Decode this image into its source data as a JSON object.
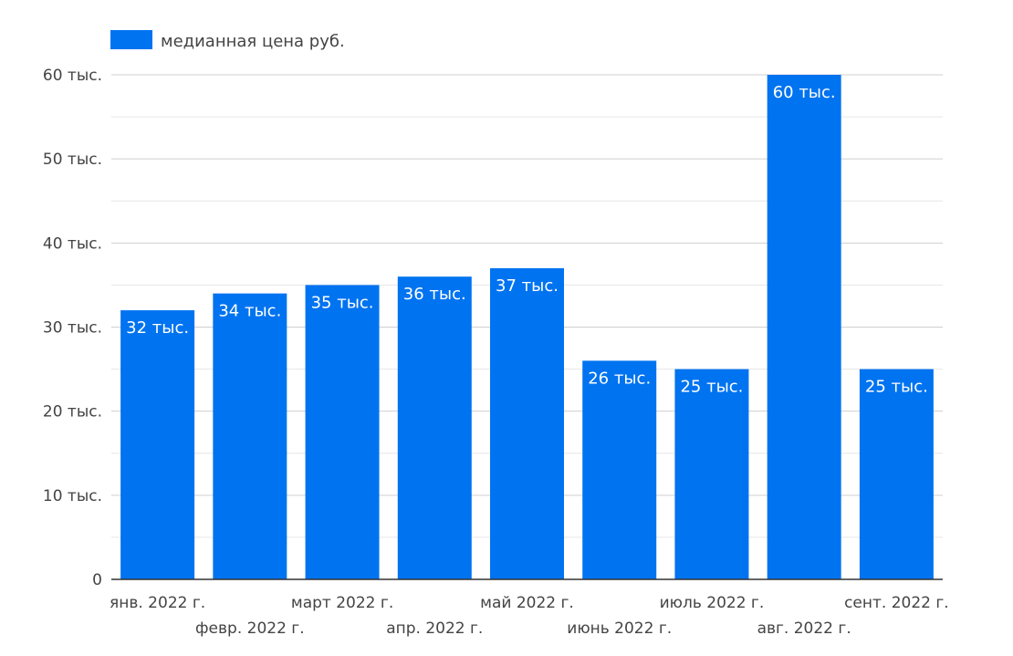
{
  "chart_data": {
    "type": "bar",
    "categories": [
      "янв. 2022 г.",
      "февр. 2022 г.",
      "март 2022 г.",
      "апр. 2022 г.",
      "май 2022 г.",
      "июнь 2022 г.",
      "июль 2022 г.",
      "авг. 2022 г.",
      "сент. 2022 г."
    ],
    "series": [
      {
        "name": "медианная цена руб.",
        "values": [
          32000,
          34000,
          35000,
          36000,
          37000,
          26000,
          25000,
          60000,
          25000
        ],
        "labels": [
          "32 тыс.",
          "34 тыс.",
          "35 тыс.",
          "36 тыс.",
          "37 тыс.",
          "26 тыс.",
          "25 тыс.",
          "60 тыс.",
          "25 тыс."
        ],
        "color": "#0073f0"
      }
    ],
    "title": "",
    "xlabel": "",
    "ylabel": "",
    "ylim": [
      0,
      60000
    ],
    "yticks": [
      0,
      10000,
      20000,
      30000,
      40000,
      50000,
      60000
    ],
    "ytick_labels": [
      "0",
      "10 тыс.",
      "20 тыс.",
      "30 тыс.",
      "40 тыс.",
      "50 тыс.",
      "60 тыс."
    ],
    "grid": true,
    "legend_position": "top-left"
  }
}
